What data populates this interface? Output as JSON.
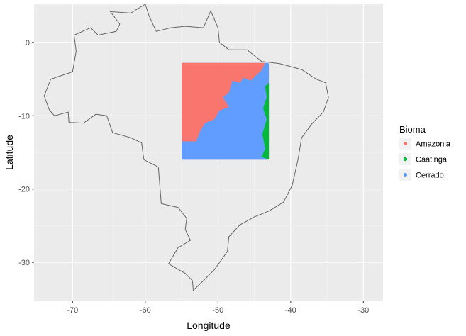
{
  "chart_data": {
    "type": "map",
    "xlabel": "Longitude",
    "ylabel": "Latitude",
    "xlim": [
      -75.3,
      -27.3
    ],
    "ylim": [
      -35.3,
      5.3
    ],
    "x_ticks": [
      -70,
      -60,
      -50,
      -40,
      -30
    ],
    "y_ticks": [
      0,
      -10,
      -20,
      -30
    ],
    "x_tick_labels": [
      "-70",
      "-60",
      "-50",
      "-40",
      "-30"
    ],
    "y_tick_labels": [
      "0",
      "-10",
      "-20",
      "-30"
    ],
    "grid": true,
    "legend": {
      "title": "Bioma",
      "position": "right",
      "entries": [
        {
          "name": "Amazonia",
          "color": "#F8766D"
        },
        {
          "name": "Caatinga",
          "color": "#00BA38"
        },
        {
          "name": "Cerrado",
          "color": "#619CFF"
        }
      ]
    },
    "outline": {
      "color": "#666666",
      "points": [
        [
          -60.0,
          5.2
        ],
        [
          -59.5,
          3.7
        ],
        [
          -58.5,
          1.5
        ],
        [
          -56.5,
          2.0
        ],
        [
          -54.5,
          2.2
        ],
        [
          -52.0,
          2.0
        ],
        [
          -51.0,
          4.3
        ],
        [
          -50.0,
          2.0
        ],
        [
          -49.8,
          0.0
        ],
        [
          -48.5,
          -1.0
        ],
        [
          -46.0,
          -1.0
        ],
        [
          -44.0,
          -2.6
        ],
        [
          -41.5,
          -2.9
        ],
        [
          -38.5,
          -3.7
        ],
        [
          -36.5,
          -5.0
        ],
        [
          -35.2,
          -5.5
        ],
        [
          -34.8,
          -7.5
        ],
        [
          -35.5,
          -9.5
        ],
        [
          -37.0,
          -11.0
        ],
        [
          -38.5,
          -13.0
        ],
        [
          -39.0,
          -16.0
        ],
        [
          -39.8,
          -19.5
        ],
        [
          -41.0,
          -21.8
        ],
        [
          -43.0,
          -23.0
        ],
        [
          -45.0,
          -23.8
        ],
        [
          -47.0,
          -24.9
        ],
        [
          -48.5,
          -26.5
        ],
        [
          -48.7,
          -28.5
        ],
        [
          -50.5,
          -31.0
        ],
        [
          -52.0,
          -32.5
        ],
        [
          -53.4,
          -33.8
        ],
        [
          -53.5,
          -32.5
        ],
        [
          -54.5,
          -31.5
        ],
        [
          -56.8,
          -30.2
        ],
        [
          -55.5,
          -28.0
        ],
        [
          -53.8,
          -27.0
        ],
        [
          -54.5,
          -25.5
        ],
        [
          -54.3,
          -24.0
        ],
        [
          -55.5,
          -22.5
        ],
        [
          -57.8,
          -22.0
        ],
        [
          -58.0,
          -19.5
        ],
        [
          -58.2,
          -17.0
        ],
        [
          -60.2,
          -16.0
        ],
        [
          -60.5,
          -13.7
        ],
        [
          -62.0,
          -13.0
        ],
        [
          -64.5,
          -12.3
        ],
        [
          -65.3,
          -10.0
        ],
        [
          -66.8,
          -9.8
        ],
        [
          -68.5,
          -11.0
        ],
        [
          -70.5,
          -10.9
        ],
        [
          -70.6,
          -9.5
        ],
        [
          -72.5,
          -10.0
        ],
        [
          -73.2,
          -9.2
        ],
        [
          -73.9,
          -7.3
        ],
        [
          -73.0,
          -5.0
        ],
        [
          -70.0,
          -4.0
        ],
        [
          -69.5,
          -1.2
        ],
        [
          -69.8,
          1.0
        ],
        [
          -67.5,
          2.0
        ],
        [
          -66.5,
          1.0
        ],
        [
          -64.0,
          1.5
        ],
        [
          -63.5,
          2.5
        ],
        [
          -64.8,
          4.2
        ],
        [
          -62.0,
          4.0
        ],
        [
          -60.0,
          5.2
        ]
      ]
    },
    "region_bounds": {
      "x": [
        -55.0,
        -43.0
      ],
      "y": [
        -16.0,
        -2.8
      ]
    },
    "regions": [
      {
        "name": "Amazonia",
        "points": [
          [
            -55.0,
            -2.8
          ],
          [
            -43.5,
            -2.8
          ],
          [
            -44.0,
            -3.8
          ],
          [
            -45.5,
            -5.2
          ],
          [
            -46.5,
            -4.8
          ],
          [
            -47.0,
            -5.5
          ],
          [
            -48.0,
            -5.2
          ],
          [
            -48.5,
            -6.8
          ],
          [
            -49.3,
            -7.5
          ],
          [
            -48.5,
            -8.8
          ],
          [
            -49.8,
            -9.3
          ],
          [
            -50.5,
            -10.5
          ],
          [
            -51.8,
            -11.0
          ],
          [
            -52.5,
            -12.2
          ],
          [
            -53.0,
            -13.5
          ],
          [
            -55.0,
            -13.5
          ]
        ]
      },
      {
        "name": "Caatinga",
        "points": [
          [
            -43.0,
            -5.5
          ],
          [
            -43.5,
            -6.0
          ],
          [
            -43.3,
            -7.5
          ],
          [
            -43.8,
            -9.0
          ],
          [
            -43.3,
            -10.5
          ],
          [
            -43.9,
            -12.5
          ],
          [
            -43.5,
            -14.5
          ],
          [
            -44.0,
            -15.6
          ],
          [
            -43.0,
            -16.0
          ]
        ]
      }
    ]
  }
}
